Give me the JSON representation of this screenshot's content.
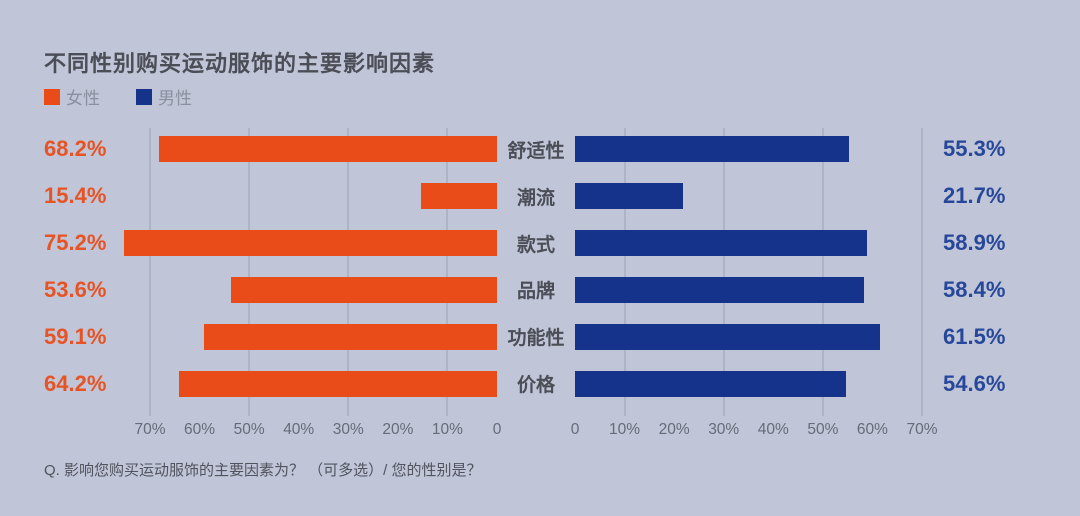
{
  "title": "不同性别购买运动服饰的主要影响因素",
  "legend": {
    "items": [
      {
        "label": "女性",
        "color": "#ea4c19"
      },
      {
        "label": "男性",
        "color": "#16338b"
      }
    ]
  },
  "footnote": "Q. 影响您购买运动服饰的主要因素为？ （可多选）/ 您的性别是？",
  "colors": {
    "background": "#c0c5d7",
    "female": "#ea4c19",
    "male": "#16338b",
    "female_label": "#e65426",
    "male_label": "#27489a",
    "title_text": "#4b4e57",
    "category_text": "#4b4e57",
    "axis_text": "#676b78",
    "legend_text": "#8b90a0",
    "footnote_text": "#51545e",
    "gridline": "#aeb4c8"
  },
  "chart_data": {
    "type": "bar",
    "variant": "butterfly",
    "title": "不同性别购买运动服饰的主要影响因素",
    "categories": [
      "舒适性",
      "潮流",
      "款式",
      "品牌",
      "功能性",
      "价格"
    ],
    "series": [
      {
        "name": "女性",
        "side": "left",
        "color": "#ea4c19",
        "values": [
          68.2,
          15.4,
          75.2,
          53.6,
          59.1,
          64.2
        ]
      },
      {
        "name": "男性",
        "side": "right",
        "color": "#16338b",
        "values": [
          55.3,
          21.7,
          58.9,
          58.4,
          61.5,
          54.6
        ]
      }
    ],
    "value_suffix": "%",
    "axis": {
      "max": 70,
      "left_ticks": [
        "70%",
        "60%",
        "50%",
        "40%",
        "30%",
        "20%",
        "10%",
        "0"
      ],
      "right_ticks": [
        "0",
        "10%",
        "20%",
        "30%",
        "40%",
        "50%",
        "60%",
        "70%"
      ],
      "gridline_values": [
        10,
        30,
        50,
        70
      ]
    }
  }
}
